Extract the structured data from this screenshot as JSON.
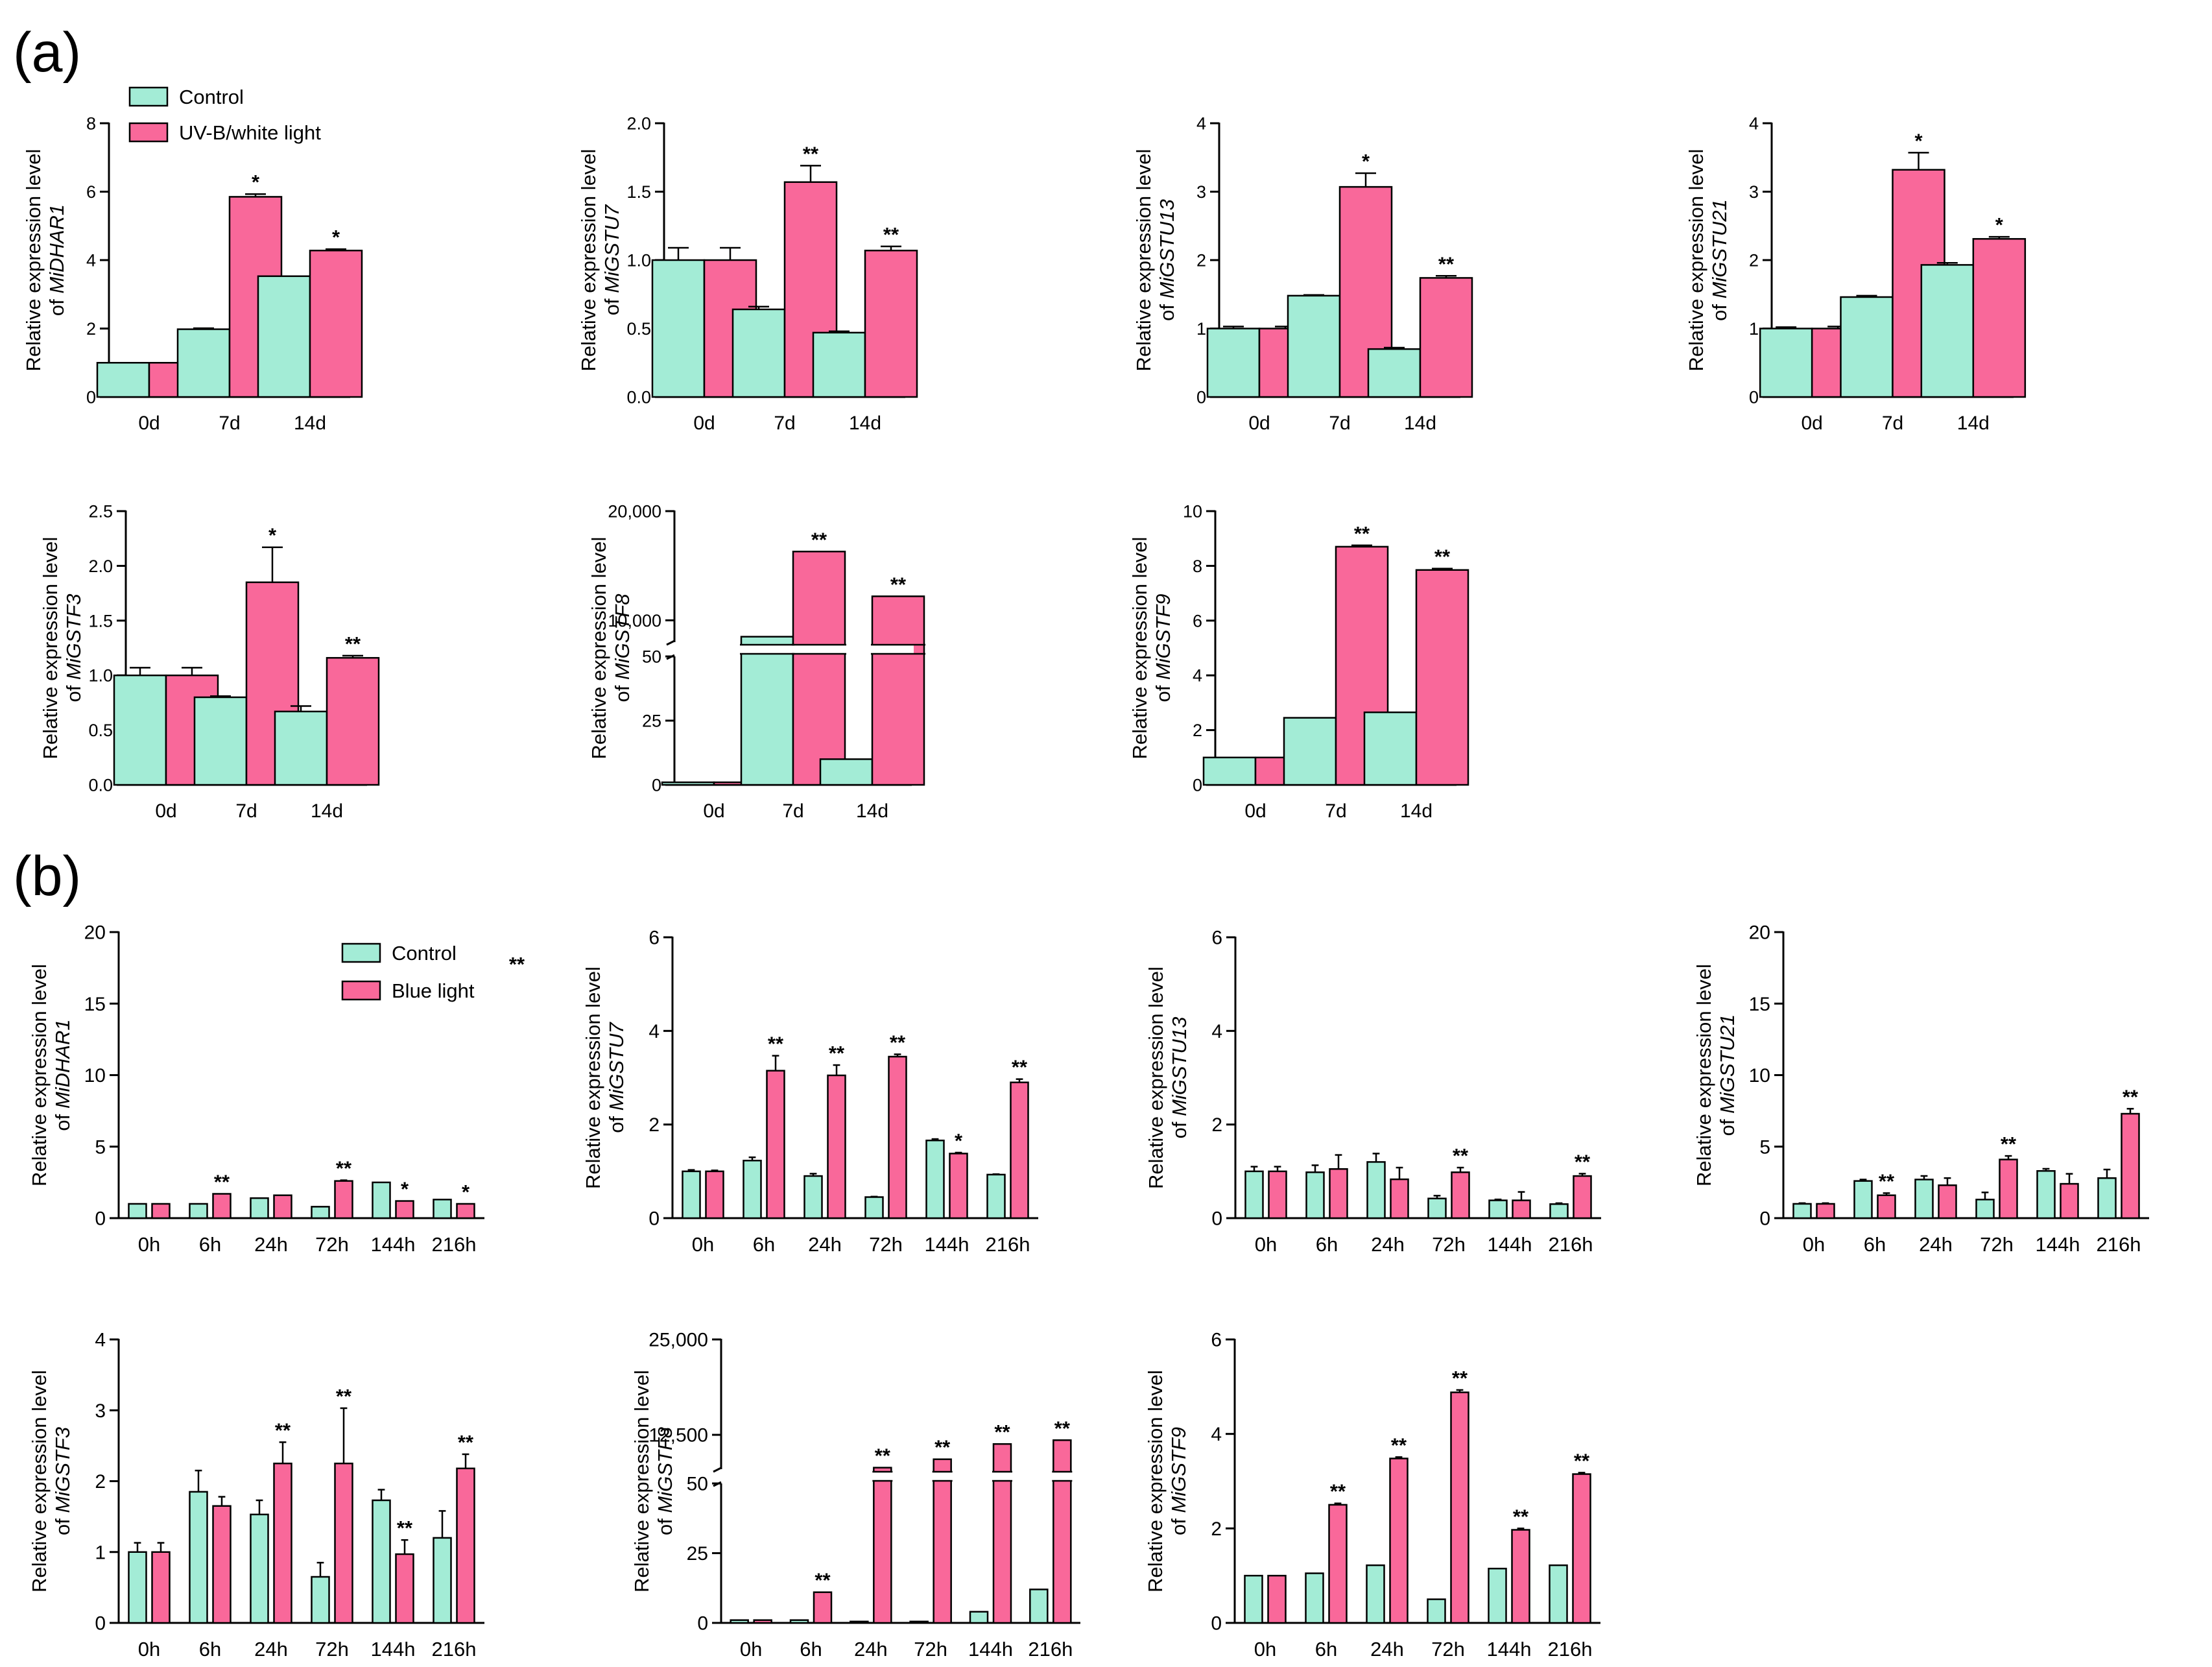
{
  "panels": {
    "a": "(a)",
    "b": "(b)"
  },
  "colors": {
    "control": "#a3ecd6",
    "treatment": "#f9689a",
    "stroke": "#000000"
  },
  "legend_a": {
    "control": "Control",
    "treatment": "UV-B/white light"
  },
  "legend_b": {
    "control": "Control",
    "treatment": "Blue light"
  },
  "ylabel_prefix": "Relative expression level",
  "ylabel_of": "of",
  "chart_data": [
    {
      "id": "a1",
      "type": "bar",
      "panel": "a",
      "gene": "MiDHAR1",
      "categories": [
        "0d",
        "7d",
        "14d"
      ],
      "ylim": [
        0,
        8
      ],
      "yticks": [
        0,
        2,
        4,
        6,
        8
      ],
      "ytick_labels": [
        "0",
        "2",
        "4",
        "6",
        "8"
      ],
      "series": [
        {
          "name": "Control",
          "values": [
            1.0,
            1.98,
            3.53
          ],
          "errors": [
            0,
            0.03,
            0
          ]
        },
        {
          "name": "UV-B/white light",
          "values": [
            1.0,
            5.85,
            4.28
          ],
          "errors": [
            0,
            0.08,
            0.04
          ]
        }
      ],
      "sig": [
        "",
        "*",
        "*"
      ]
    },
    {
      "id": "a2",
      "type": "bar",
      "panel": "a",
      "gene": "MiGSTU7",
      "categories": [
        "0d",
        "7d",
        "14d"
      ],
      "ylim": [
        0,
        2
      ],
      "yticks": [
        0,
        0.5,
        1,
        1.5,
        2
      ],
      "ytick_labels": [
        "0.0",
        "0.5",
        "1.0",
        "1.5",
        "2.0"
      ],
      "series": [
        {
          "name": "Control",
          "values": [
            1.0,
            0.64,
            0.47
          ],
          "errors": [
            0.09,
            0.02,
            0.01
          ]
        },
        {
          "name": "UV-B/white light",
          "values": [
            1.0,
            1.57,
            1.07
          ],
          "errors": [
            0.09,
            0.12,
            0.03
          ]
        }
      ],
      "sig": [
        "",
        "**",
        "**"
      ]
    },
    {
      "id": "a3",
      "type": "bar",
      "panel": "a",
      "gene": "MiGSTU13",
      "categories": [
        "0d",
        "7d",
        "14d"
      ],
      "ylim": [
        0,
        4
      ],
      "yticks": [
        0,
        1,
        2,
        3,
        4
      ],
      "ytick_labels": [
        "0",
        "1",
        "2",
        "3",
        "4"
      ],
      "series": [
        {
          "name": "Control",
          "values": [
            1.0,
            1.48,
            0.7
          ],
          "errors": [
            0.03,
            0.01,
            0.02
          ]
        },
        {
          "name": "UV-B/white light",
          "values": [
            1.0,
            3.07,
            1.74
          ],
          "errors": [
            0.03,
            0.2,
            0.03
          ]
        }
      ],
      "sig": [
        "",
        "*",
        "**"
      ]
    },
    {
      "id": "a4",
      "type": "bar",
      "panel": "a",
      "gene": "MiGSTU21",
      "categories": [
        "0d",
        "7d",
        "14d"
      ],
      "ylim": [
        0,
        4
      ],
      "yticks": [
        0,
        1,
        2,
        3,
        4
      ],
      "ytick_labels": [
        "0",
        "1",
        "2",
        "3",
        "4"
      ],
      "series": [
        {
          "name": "Control",
          "values": [
            1.0,
            1.46,
            1.93
          ],
          "errors": [
            0.02,
            0.02,
            0.03
          ]
        },
        {
          "name": "UV-B/white light",
          "values": [
            1.0,
            3.32,
            2.31
          ],
          "errors": [
            0.03,
            0.25,
            0.03
          ]
        }
      ],
      "sig": [
        "",
        "*",
        "*"
      ]
    },
    {
      "id": "a5",
      "type": "bar",
      "panel": "a",
      "gene": "MiGSTF3",
      "categories": [
        "0d",
        "7d",
        "14d"
      ],
      "ylim": [
        0,
        2.5
      ],
      "yticks": [
        0,
        0.5,
        1,
        1.5,
        2,
        2.5
      ],
      "ytick_labels": [
        "0.0",
        "0.5",
        "1.0",
        "1.5",
        "2.0",
        "2.5"
      ],
      "series": [
        {
          "name": "Control",
          "values": [
            1.0,
            0.8,
            0.67
          ],
          "errors": [
            0.07,
            0.01,
            0.05
          ]
        },
        {
          "name": "UV-B/white light",
          "values": [
            1.0,
            1.85,
            1.16
          ],
          "errors": [
            0.07,
            0.32,
            0.02
          ]
        }
      ],
      "sig": [
        "",
        "*",
        "**"
      ]
    },
    {
      "id": "a6",
      "type": "bar",
      "panel": "a",
      "gene": "MiGSTF8",
      "categories": [
        "0d",
        "7d",
        "14d"
      ],
      "broken_axis": {
        "lower": [
          0,
          50
        ],
        "lower_ticks": [
          0,
          25,
          50
        ],
        "lower_labels": [
          "0",
          "25",
          "50"
        ],
        "upper": [
          8000,
          20000
        ],
        "upper_ticks": [
          10000,
          20000
        ],
        "upper_labels": [
          "10,000",
          "20,000"
        ]
      },
      "series": [
        {
          "name": "Control",
          "values": [
            1.0,
            8500,
            10.0
          ],
          "errors": [
            0,
            0,
            0
          ]
        },
        {
          "name": "UV-B/white light",
          "values": [
            1.0,
            16300,
            12200
          ],
          "errors": [
            0,
            0,
            0
          ]
        }
      ],
      "sig": [
        "",
        "**",
        "**"
      ]
    },
    {
      "id": "a7",
      "type": "bar",
      "panel": "a",
      "gene": "MiGSTF9",
      "categories": [
        "0d",
        "7d",
        "14d"
      ],
      "ylim": [
        0,
        10
      ],
      "yticks": [
        0,
        2,
        4,
        6,
        8,
        10
      ],
      "ytick_labels": [
        "0",
        "2",
        "4",
        "6",
        "8",
        "10"
      ],
      "series": [
        {
          "name": "Control",
          "values": [
            1.0,
            2.45,
            2.65
          ],
          "errors": [
            0,
            0,
            0
          ]
        },
        {
          "name": "UV-B/white light",
          "values": [
            1.0,
            8.7,
            7.85
          ],
          "errors": [
            0,
            0.05,
            0.05
          ]
        }
      ],
      "sig": [
        "",
        "**",
        "**"
      ]
    },
    {
      "id": "b1",
      "type": "bar",
      "panel": "b",
      "gene": "MiDHAR1",
      "categories": [
        "0h",
        "6h",
        "24h",
        "72h",
        "144h",
        "216h"
      ],
      "ylim": [
        0,
        20
      ],
      "yticks": [
        0,
        5,
        10,
        15,
        20
      ],
      "ytick_labels": [
        "0",
        "5",
        "10",
        "15",
        "20"
      ],
      "series": [
        {
          "name": "Control",
          "values": [
            1.0,
            1.0,
            1.4,
            0.8,
            2.5,
            1.3
          ],
          "errors": [
            0,
            0,
            0,
            0,
            0,
            0
          ]
        },
        {
          "name": "Blue light",
          "values": [
            1.0,
            1.7,
            1.6,
            2.6,
            1.2,
            1.0
          ],
          "errors": [
            0,
            0,
            0,
            0.05,
            0,
            0
          ]
        }
      ],
      "sig": [
        "",
        "**",
        "",
        "**",
        "*",
        "*"
      ],
      "stray_mark": "**"
    },
    {
      "id": "b2",
      "type": "bar",
      "panel": "b",
      "gene": "MiGSTU7",
      "categories": [
        "0h",
        "6h",
        "24h",
        "72h",
        "144h",
        "216h"
      ],
      "ylim": [
        0,
        6
      ],
      "yticks": [
        0,
        2,
        4,
        6
      ],
      "ytick_labels": [
        "0",
        "2",
        "4",
        "6"
      ],
      "series": [
        {
          "name": "Control",
          "values": [
            1.0,
            1.23,
            0.9,
            0.45,
            1.66,
            0.93
          ],
          "errors": [
            0.03,
            0.07,
            0.05,
            0.01,
            0.03,
            0.01
          ]
        },
        {
          "name": "Blue light",
          "values": [
            1.0,
            3.15,
            3.05,
            3.45,
            1.38,
            2.9
          ],
          "errors": [
            0.02,
            0.32,
            0.22,
            0.05,
            0.02,
            0.07
          ]
        }
      ],
      "sig": [
        "",
        "**",
        "**",
        "**",
        "*",
        "**"
      ]
    },
    {
      "id": "b3",
      "type": "bar",
      "panel": "b",
      "gene": "MiGSTU13",
      "categories": [
        "0h",
        "6h",
        "24h",
        "72h",
        "144h",
        "216h"
      ],
      "ylim": [
        0,
        6
      ],
      "yticks": [
        0,
        2,
        4,
        6
      ],
      "ytick_labels": [
        "0",
        "2",
        "4",
        "6"
      ],
      "series": [
        {
          "name": "Control",
          "values": [
            1.0,
            0.98,
            1.2,
            0.42,
            0.38,
            0.3
          ],
          "errors": [
            0.1,
            0.15,
            0.18,
            0.06,
            0.02,
            0.02
          ]
        },
        {
          "name": "Blue light",
          "values": [
            1.0,
            1.05,
            0.83,
            0.98,
            0.38,
            0.9
          ],
          "errors": [
            0.1,
            0.3,
            0.25,
            0.1,
            0.18,
            0.05
          ]
        }
      ],
      "sig": [
        "",
        "",
        "",
        "**",
        "",
        "**"
      ]
    },
    {
      "id": "b4",
      "type": "bar",
      "panel": "b",
      "gene": "MiGSTU21",
      "categories": [
        "0h",
        "6h",
        "24h",
        "72h",
        "144h",
        "216h"
      ],
      "ylim": [
        0,
        20
      ],
      "yticks": [
        0,
        5,
        10,
        15,
        20
      ],
      "ytick_labels": [
        "0",
        "5",
        "10",
        "15",
        "20"
      ],
      "series": [
        {
          "name": "Control",
          "values": [
            1.0,
            2.6,
            2.7,
            1.3,
            3.3,
            2.8
          ],
          "errors": [
            0.05,
            0.1,
            0.25,
            0.5,
            0.15,
            0.6
          ]
        },
        {
          "name": "Blue light",
          "values": [
            1.0,
            1.6,
            2.3,
            4.1,
            2.4,
            7.3
          ],
          "errors": [
            0.05,
            0.15,
            0.5,
            0.25,
            0.7,
            0.35
          ]
        }
      ],
      "sig": [
        "",
        "**",
        "",
        "**",
        "",
        "**"
      ]
    },
    {
      "id": "b5",
      "type": "bar",
      "panel": "b",
      "gene": "MiGSTF3",
      "categories": [
        "0h",
        "6h",
        "24h",
        "72h",
        "144h",
        "216h"
      ],
      "ylim": [
        0,
        4
      ],
      "yticks": [
        0,
        1,
        2,
        3,
        4
      ],
      "ytick_labels": [
        "0",
        "1",
        "2",
        "3",
        "4"
      ],
      "series": [
        {
          "name": "Control",
          "values": [
            1.0,
            1.85,
            1.53,
            0.65,
            1.73,
            1.2
          ],
          "errors": [
            0.13,
            0.3,
            0.2,
            0.2,
            0.15,
            0.38
          ]
        },
        {
          "name": "Blue light",
          "values": [
            1.0,
            1.65,
            2.25,
            2.25,
            0.97,
            2.18
          ],
          "errors": [
            0.13,
            0.13,
            0.3,
            0.78,
            0.2,
            0.2
          ]
        }
      ],
      "sig": [
        "",
        "",
        "**",
        "**",
        "**",
        "**"
      ]
    },
    {
      "id": "b6",
      "type": "bar",
      "panel": "b",
      "gene": "MiGSTF8",
      "categories": [
        "0h",
        "6h",
        "24h",
        "72h",
        "144h",
        "216h"
      ],
      "broken_axis": {
        "lower": [
          0,
          50
        ],
        "lower_ticks": [
          0,
          25,
          50
        ],
        "lower_labels": [
          "0",
          "25",
          "50"
        ],
        "upper": [
          8000,
          25000
        ],
        "upper_ticks": [
          12500,
          25000
        ],
        "upper_labels": [
          "12,500",
          "25,000"
        ]
      },
      "series": [
        {
          "name": "Control",
          "values": [
            1.0,
            1.0,
            0.5,
            0.5,
            4.0,
            12.0
          ],
          "errors": [
            0,
            0,
            0,
            0,
            0,
            0
          ]
        },
        {
          "name": "Blue light",
          "values": [
            1.0,
            11.0,
            8200,
            9300,
            11300,
            11800
          ],
          "errors": [
            0,
            0,
            0,
            0,
            0,
            0
          ]
        }
      ],
      "sig": [
        "",
        "**",
        "**",
        "**",
        "**",
        "**"
      ]
    },
    {
      "id": "b7",
      "type": "bar",
      "panel": "b",
      "gene": "MiGSTF9",
      "categories": [
        "0h",
        "6h",
        "24h",
        "72h",
        "144h",
        "216h"
      ],
      "ylim": [
        0,
        6
      ],
      "yticks": [
        0,
        2,
        4,
        6
      ],
      "ytick_labels": [
        "0",
        "2",
        "4",
        "6"
      ],
      "series": [
        {
          "name": "Control",
          "values": [
            1.0,
            1.05,
            1.22,
            0.5,
            1.15,
            1.22
          ],
          "errors": [
            0,
            0,
            0,
            0,
            0,
            0
          ]
        },
        {
          "name": "Blue light",
          "values": [
            1.0,
            2.5,
            3.48,
            4.88,
            1.97,
            3.15
          ],
          "errors": [
            0,
            0.03,
            0.03,
            0.05,
            0.03,
            0.03
          ]
        }
      ],
      "sig": [
        "",
        "**",
        "**",
        "**",
        "**",
        "**"
      ]
    }
  ]
}
